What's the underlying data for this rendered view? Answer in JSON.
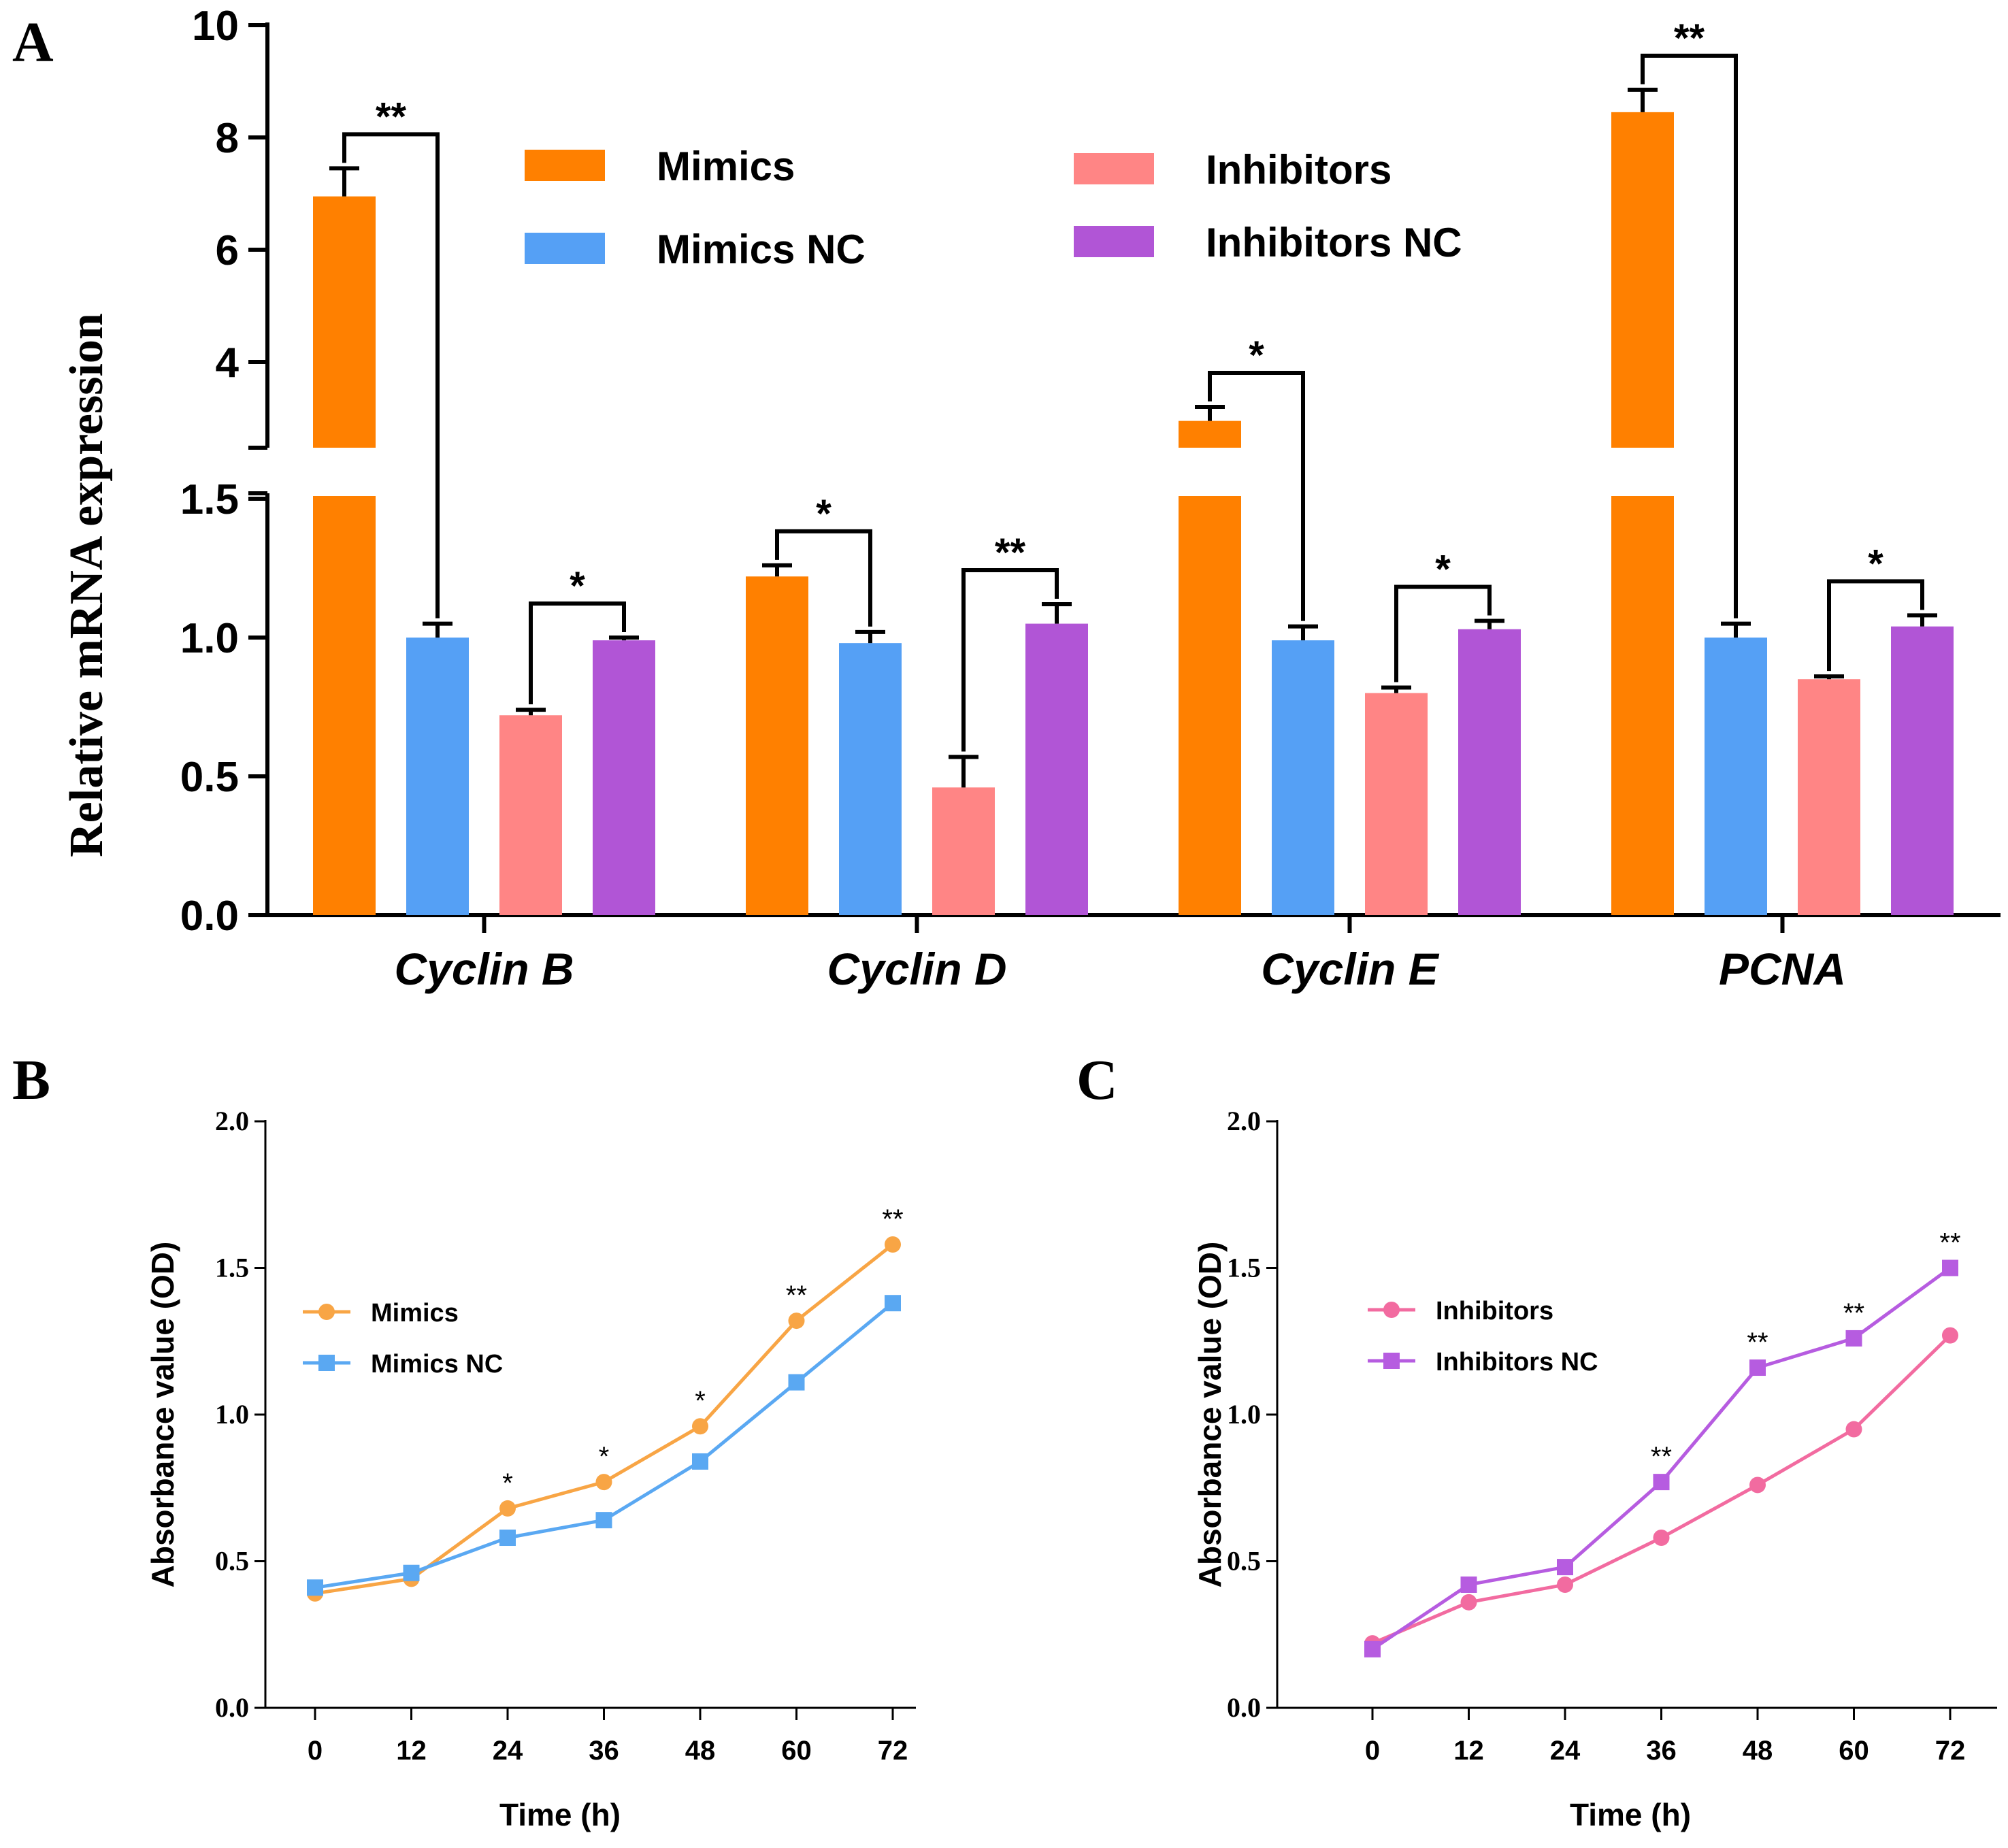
{
  "colors": {
    "mimics": "#FF8000",
    "mimics_nc": "#55A0F5",
    "inhibitors": "#FF8585",
    "inhibitors_nc": "#B155D6",
    "line_mimics": "#F8A545",
    "line_mimics_nc": "#5AA8F2",
    "line_inhibitors": "#F26BA0",
    "line_inhibitors_nc": "#B65CE0"
  },
  "chart_data": [
    {
      "panel": "A",
      "type": "bar",
      "ylabel": "Relative mRNA expression",
      "categories": [
        "Cyclin B",
        "Cyclin D",
        "Cyclin E",
        "PCNA"
      ],
      "y_axis_break": {
        "lower_range": [
          0,
          1.5
        ],
        "upper_range": [
          3,
          10
        ]
      },
      "yticks_lower": [
        "0.0",
        "0.5",
        "1.0",
        "1.5"
      ],
      "yticks_upper": [
        "4",
        "6",
        "8",
        "10"
      ],
      "series": [
        {
          "name": "Mimics",
          "values": [
            6.95,
            1.22,
            2.95,
            8.45
          ],
          "errors": [
            0.5,
            0.04,
            0.25,
            0.4
          ]
        },
        {
          "name": "Mimics NC",
          "values": [
            1.0,
            0.98,
            0.99,
            1.0
          ],
          "errors": [
            0.05,
            0.04,
            0.05,
            0.05
          ]
        },
        {
          "name": "Inhibitors",
          "values": [
            0.72,
            0.46,
            0.8,
            0.85
          ],
          "errors": [
            0.02,
            0.11,
            0.02,
            0.01
          ]
        },
        {
          "name": "Inhibitors NC",
          "values": [
            0.99,
            1.05,
            1.03,
            1.04
          ],
          "errors": [
            0.01,
            0.07,
            0.03,
            0.04
          ]
        }
      ],
      "significance": [
        {
          "category": "Cyclin B",
          "pair": [
            "Mimics",
            "Mimics NC"
          ],
          "label": "**"
        },
        {
          "category": "Cyclin B",
          "pair": [
            "Inhibitors",
            "Inhibitors NC"
          ],
          "label": "*"
        },
        {
          "category": "Cyclin D",
          "pair": [
            "Mimics",
            "Mimics NC"
          ],
          "label": "*"
        },
        {
          "category": "Cyclin D",
          "pair": [
            "Inhibitors",
            "Inhibitors NC"
          ],
          "label": "**"
        },
        {
          "category": "Cyclin E",
          "pair": [
            "Mimics",
            "Mimics NC"
          ],
          "label": "*"
        },
        {
          "category": "Cyclin E",
          "pair": [
            "Inhibitors",
            "Inhibitors NC"
          ],
          "label": "*"
        },
        {
          "category": "PCNA",
          "pair": [
            "Mimics",
            "Mimics NC"
          ],
          "label": "**"
        },
        {
          "category": "PCNA",
          "pair": [
            "Inhibitors",
            "Inhibitors NC"
          ],
          "label": "*"
        }
      ]
    },
    {
      "panel": "B",
      "type": "line",
      "xlabel": "Time (h)",
      "ylabel": "Absorbance value (OD)",
      "x": [
        0,
        12,
        24,
        36,
        48,
        60,
        72
      ],
      "xticks": [
        "0",
        "12",
        "24",
        "36",
        "48",
        "60",
        "72"
      ],
      "yticks": [
        "0.0",
        "0.5",
        "1.0",
        "1.5",
        "2.0"
      ],
      "ylim": [
        0,
        2.0
      ],
      "series": [
        {
          "name": "Mimics",
          "marker": "circle",
          "values": [
            0.39,
            0.44,
            0.68,
            0.77,
            0.96,
            1.32,
            1.58
          ]
        },
        {
          "name": "Mimics NC",
          "marker": "square",
          "values": [
            0.41,
            0.46,
            0.58,
            0.64,
            0.84,
            1.11,
            1.38
          ]
        }
      ],
      "significance": [
        "",
        "",
        "*",
        "*",
        "*",
        "**",
        "**"
      ]
    },
    {
      "panel": "C",
      "type": "line",
      "xlabel": "Time (h)",
      "ylabel": "Absorbance value (OD)",
      "x": [
        0,
        12,
        24,
        36,
        48,
        60,
        72
      ],
      "xticks": [
        "0",
        "12",
        "24",
        "36",
        "48",
        "60",
        "72"
      ],
      "yticks": [
        "0.0",
        "0.5",
        "1.0",
        "1.5",
        "2.0"
      ],
      "ylim": [
        0,
        2.0
      ],
      "series": [
        {
          "name": "Inhibitors",
          "marker": "circle",
          "values": [
            0.22,
            0.36,
            0.42,
            0.58,
            0.76,
            0.95,
            1.27
          ]
        },
        {
          "name": "Inhibitors NC",
          "marker": "square",
          "values": [
            0.2,
            0.42,
            0.48,
            0.77,
            1.16,
            1.26,
            1.5
          ]
        }
      ],
      "significance": [
        "",
        "",
        "",
        "**",
        "**",
        "**",
        "**"
      ]
    }
  ]
}
